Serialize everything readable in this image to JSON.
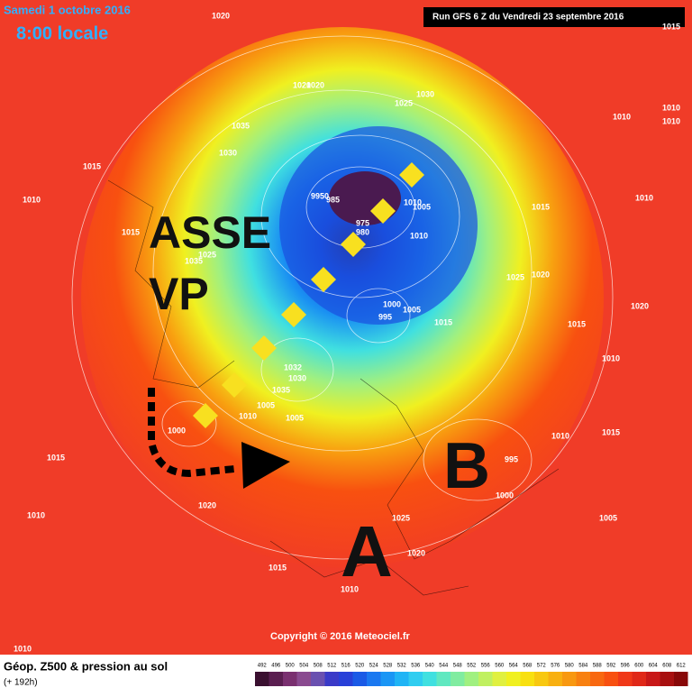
{
  "header": {
    "date": "Samedi 1 octobre 2016",
    "time": "8:00 locale",
    "run": "Run GFS 6 Z du Vendredi 23 septembre 2016"
  },
  "annotations": {
    "team1": "ASSE",
    "team2": "VP",
    "low": "B",
    "high": "A"
  },
  "isobars": [
    "1020",
    "1020",
    "1030",
    "1025",
    "1035",
    "1030",
    "1015",
    "1010",
    "1015",
    "1035",
    "1025",
    "1020",
    "9950",
    "985",
    "975",
    "980",
    "1010",
    "1005",
    "1010",
    "1015",
    "1000",
    "995",
    "1005",
    "1015",
    "1020",
    "1025",
    "1015",
    "1010",
    "1032",
    "1030",
    "1035",
    "1005",
    "1010",
    "1005",
    "1000",
    "1015",
    "1010",
    "1020",
    "1025",
    "1020",
    "1015",
    "1010",
    "1005",
    "995",
    "1000",
    "1015",
    "1010",
    "1015",
    "1010",
    "1010",
    "1010",
    "1010",
    "1010",
    "1020"
  ],
  "footer": {
    "copyright": "Copyright © 2016 Meteociel.fr",
    "legend_title": "Géop. Z500 & pression au sol",
    "lead": "(+ 192h)",
    "scale": [
      492,
      496,
      500,
      504,
      508,
      512,
      516,
      520,
      524,
      528,
      532,
      536,
      540,
      544,
      548,
      552,
      556,
      560,
      564,
      568,
      572,
      576,
      580,
      584,
      588,
      592,
      596,
      600,
      604,
      608,
      612
    ],
    "colors": [
      "#3a1030",
      "#5a1e50",
      "#7a3070",
      "#8a4a90",
      "#6a50b0",
      "#3a3ac8",
      "#2840d8",
      "#1a5ae6",
      "#1a78f0",
      "#1a96f5",
      "#20b4f5",
      "#30cdf0",
      "#40e0e0",
      "#60e8c0",
      "#80eca0",
      "#a0f080",
      "#c0f060",
      "#e0f040",
      "#f0f020",
      "#f8e010",
      "#f8c810",
      "#f8b010",
      "#f89810",
      "#f88010",
      "#f86810",
      "#f85010",
      "#f03818",
      "#e02818",
      "#c81818",
      "#a81010",
      "#880808"
    ]
  }
}
